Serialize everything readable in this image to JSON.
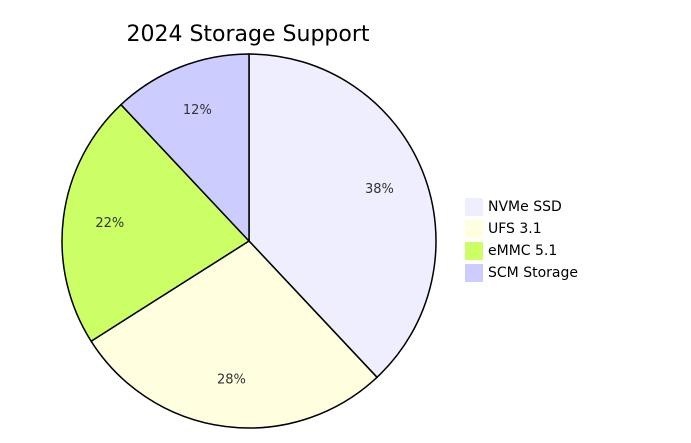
{
  "chart_data": {
    "type": "pie",
    "title": "2024 Storage Support",
    "categories": [
      "NVMe SSD",
      "UFS 3.1",
      "eMMC 5.1",
      "SCM Storage"
    ],
    "values": [
      38,
      28,
      22,
      12
    ],
    "value_labels": [
      "38%",
      "28%",
      "22%",
      "12%"
    ],
    "colors": [
      "#eeeeff",
      "#ffffe0",
      "#ccff66",
      "#ccccff"
    ],
    "legend": "right"
  }
}
